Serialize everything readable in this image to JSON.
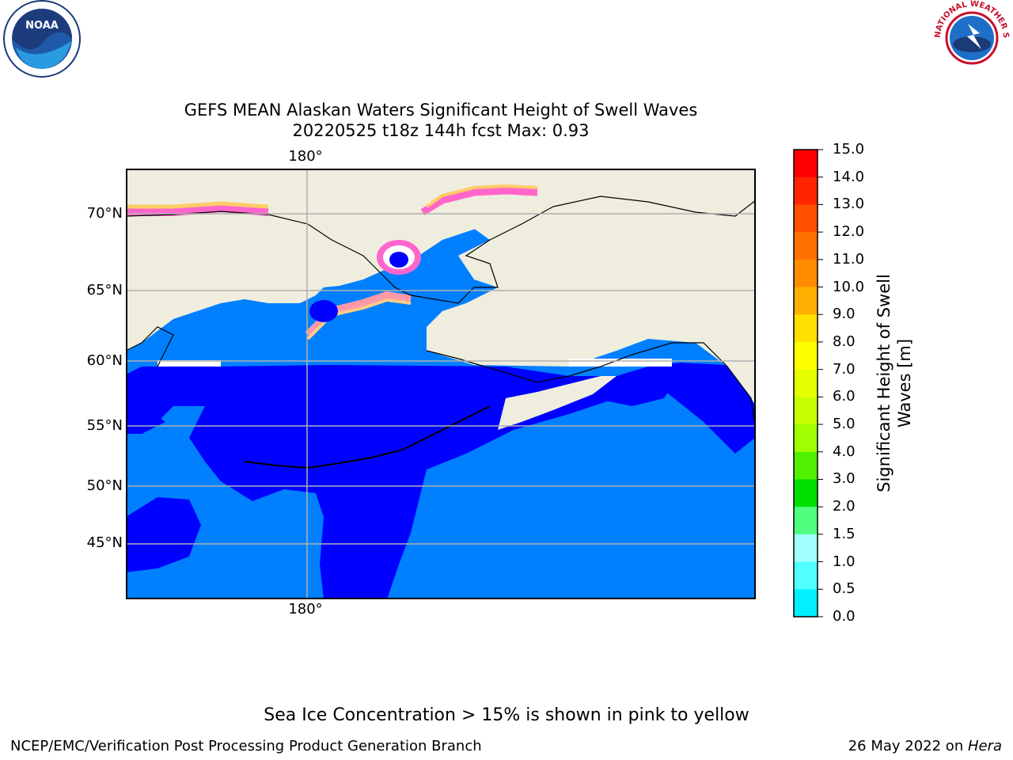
{
  "title_line1": "GEFS MEAN Alaskan Waters Significant Height of Swell Waves",
  "title_line2": "20220525 t18z 144h fcst   Max: 0.93",
  "map": {
    "lat_labels": [
      "70°N",
      "65°N",
      "60°N",
      "55°N",
      "50°N",
      "45°N"
    ],
    "lon_label_top": "180°",
    "lon_label_bottom": "180°"
  },
  "colorbar": {
    "title_line1": "Significant Height of Swell",
    "title_line2": "Waves [m]",
    "ticks": [
      "15.0",
      "14.0",
      "13.0",
      "12.0",
      "11.0",
      "10.0",
      "9.0",
      "8.0",
      "7.0",
      "6.0",
      "5.0",
      "4.0",
      "3.0",
      "2.0",
      "1.5",
      "1.0",
      "0.5",
      "0.0"
    ],
    "colors_top_to_bottom": [
      "#ff0000",
      "#ff2400",
      "#ff5000",
      "#ff7000",
      "#ff8c00",
      "#ffb000",
      "#ffe000",
      "#ffff00",
      "#e6ff00",
      "#c8ff00",
      "#a0ff00",
      "#50f000",
      "#00e000",
      "#50ff80",
      "#a0ffff",
      "#50ffff",
      "#00f0ff",
      "#0080ff",
      "#0000ff"
    ]
  },
  "footer": {
    "ice_note": "Sea Ice Concentration > 15% is shown in pink to yellow",
    "left": "NCEP/EMC/Verification Post Processing Product Generation Branch",
    "right_date": "26 May 2022 on ",
    "right_machine": "Hera"
  },
  "logos": {
    "noaa_text": "NOAA",
    "nws_text": "NATIONAL WEATHER SERVICE"
  }
}
